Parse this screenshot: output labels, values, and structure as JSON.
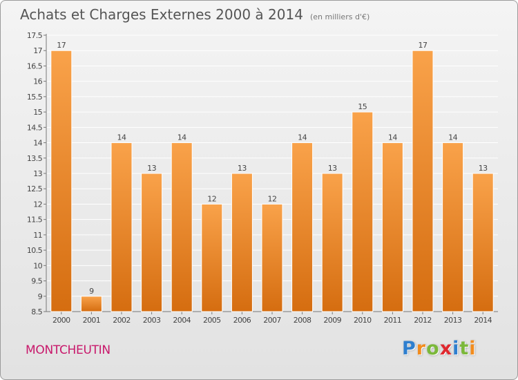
{
  "header": {
    "title": "Achats et Charges Externes 2000 à 2014",
    "subtitle": "(en milliers d'€)"
  },
  "footer": {
    "location": "MONTCHEUTIN",
    "brand": "Proxiti",
    "brand_letters": [
      {
        "char": "P",
        "color": "#2e7fcf"
      },
      {
        "char": "r",
        "color": "#f28c1e"
      },
      {
        "char": "o",
        "color": "#7bb83a"
      },
      {
        "char": "x",
        "color": "#e0282e"
      },
      {
        "char": "i",
        "color": "#2e7fcf"
      },
      {
        "char": "t",
        "color": "#7bb83a"
      },
      {
        "char": "i",
        "color": "#f28c1e"
      }
    ]
  },
  "chart_data": {
    "type": "bar",
    "categories": [
      "2000",
      "2001",
      "2002",
      "2003",
      "2004",
      "2005",
      "2006",
      "2007",
      "2008",
      "2009",
      "2010",
      "2011",
      "2012",
      "2013",
      "2014"
    ],
    "values": [
      17,
      9,
      14,
      13,
      14,
      12,
      13,
      12,
      14,
      13,
      15,
      14,
      17,
      14,
      13
    ],
    "data_labels": [
      "17",
      "9",
      "14",
      "13",
      "14",
      "12",
      "13",
      "12",
      "14",
      "13",
      "15",
      "14",
      "17",
      "14",
      "13"
    ],
    "ylim": [
      8.5,
      17.5
    ],
    "yticks": [
      "8.5",
      "9",
      "9.5",
      "10",
      "10.5",
      "11",
      "11.5",
      "12",
      "12.5",
      "13",
      "13.5",
      "14",
      "14.5",
      "15",
      "15.5",
      "16",
      "16.5",
      "17",
      "17.5"
    ],
    "grid": true,
    "colors": {
      "bar_light": "#f9a24a",
      "bar_dark": "#d56d10",
      "grid": "#ffffff"
    }
  }
}
